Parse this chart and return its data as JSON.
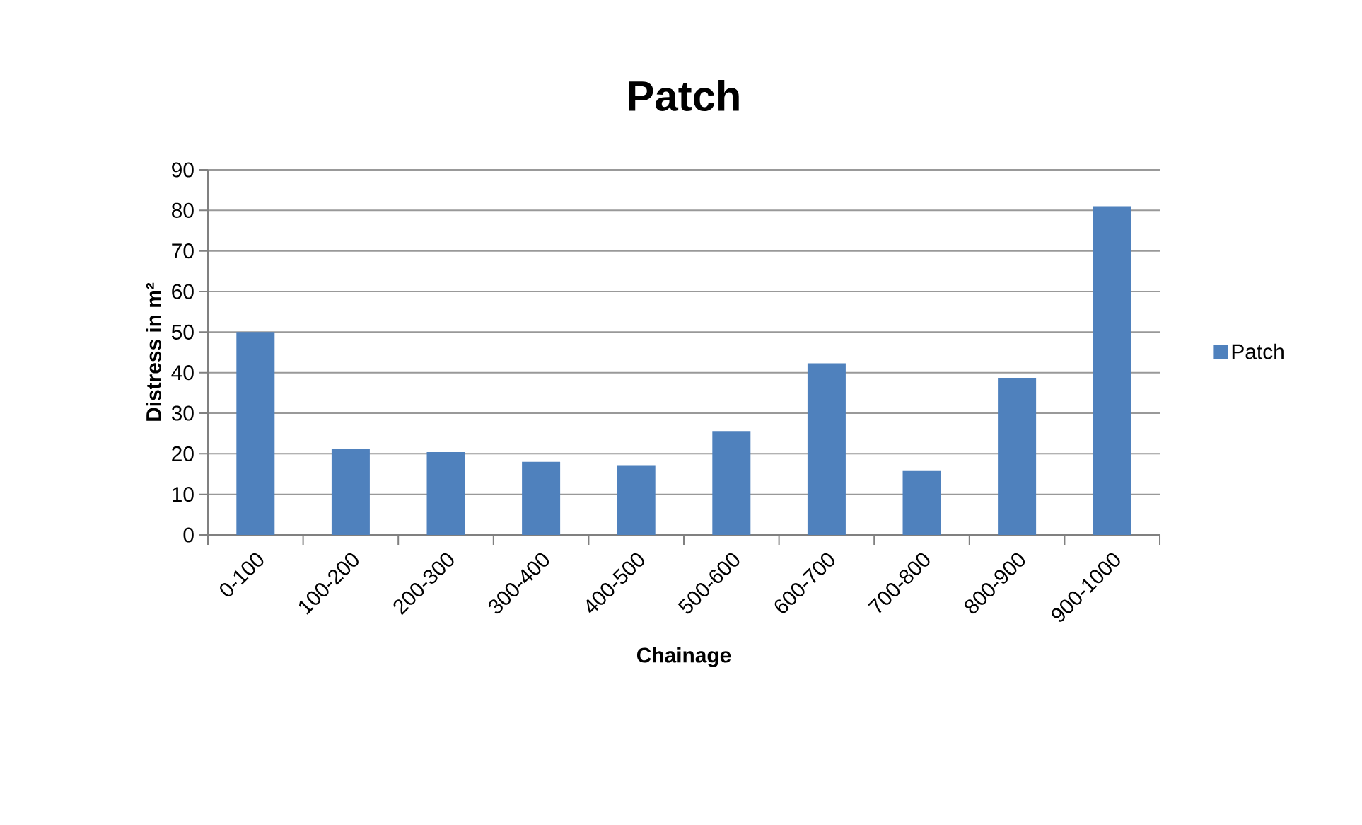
{
  "chart_data": {
    "type": "bar",
    "title": "Patch",
    "xlabel": "Chainage",
    "ylabel": "Distress in m²",
    "categories": [
      "0-100",
      "100-200",
      "200-300",
      "300-400",
      "400-500",
      "500-600",
      "600-700",
      "700-800",
      "800-900",
      "900-1000"
    ],
    "series": [
      {
        "name": "Patch",
        "color": "#4f81bd",
        "values": [
          50,
          21.1,
          20.4,
          18.0,
          17.2,
          25.6,
          42.3,
          15.9,
          38.7,
          81.0
        ]
      }
    ],
    "ylim": [
      0,
      90
    ],
    "yticks": [
      0,
      10,
      20,
      30,
      40,
      50,
      60,
      70,
      80,
      90
    ],
    "grid": "y",
    "legend": "right"
  }
}
